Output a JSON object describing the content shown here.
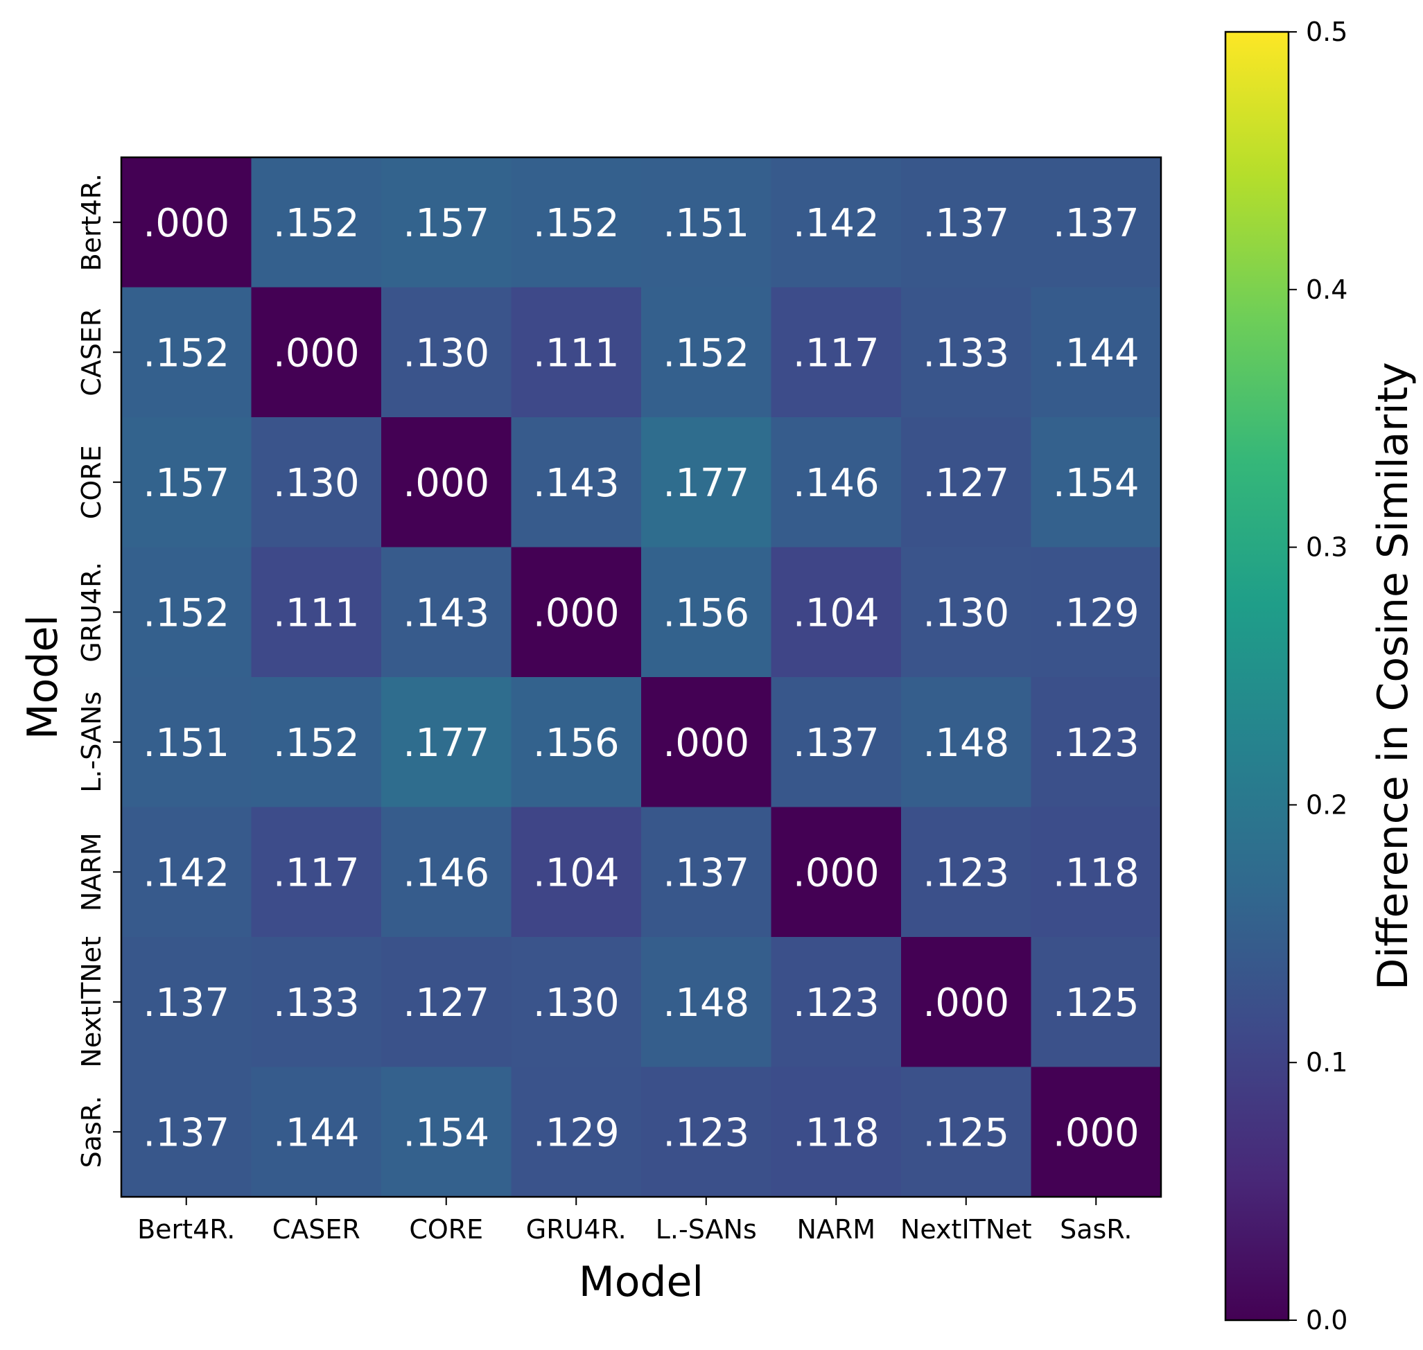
{
  "chart_data": {
    "type": "heatmap",
    "title": "",
    "xlabel": "Model",
    "ylabel": "Model",
    "x_categories": [
      "Bert4R.",
      "CASER",
      "CORE",
      "GRU4R.",
      "L.-SANs",
      "NARM",
      "NextITNet",
      "SasR."
    ],
    "y_categories": [
      "Bert4R.",
      "CASER",
      "CORE",
      "GRU4R.",
      "L.-SANs",
      "NARM",
      "NextITNet",
      "SasR."
    ],
    "values": [
      [
        0.0,
        0.152,
        0.157,
        0.152,
        0.151,
        0.142,
        0.137,
        0.137
      ],
      [
        0.152,
        0.0,
        0.13,
        0.111,
        0.152,
        0.117,
        0.133,
        0.144
      ],
      [
        0.157,
        0.13,
        0.0,
        0.143,
        0.177,
        0.146,
        0.127,
        0.154
      ],
      [
        0.152,
        0.111,
        0.143,
        0.0,
        0.156,
        0.104,
        0.13,
        0.129
      ],
      [
        0.151,
        0.152,
        0.177,
        0.156,
        0.0,
        0.137,
        0.148,
        0.123
      ],
      [
        0.142,
        0.117,
        0.146,
        0.104,
        0.137,
        0.0,
        0.123,
        0.118
      ],
      [
        0.137,
        0.133,
        0.127,
        0.13,
        0.148,
        0.123,
        0.0,
        0.125
      ],
      [
        0.137,
        0.144,
        0.154,
        0.129,
        0.123,
        0.118,
        0.125,
        0.0
      ]
    ],
    "cell_labels": [
      [
        ".000",
        ".152",
        ".157",
        ".152",
        ".151",
        ".142",
        ".137",
        ".137"
      ],
      [
        ".152",
        ".000",
        ".130",
        ".111",
        ".152",
        ".117",
        ".133",
        ".144"
      ],
      [
        ".157",
        ".130",
        ".000",
        ".143",
        ".177",
        ".146",
        ".127",
        ".154"
      ],
      [
        ".152",
        ".111",
        ".143",
        ".000",
        ".156",
        ".104",
        ".130",
        ".129"
      ],
      [
        ".151",
        ".152",
        ".177",
        ".156",
        ".000",
        ".137",
        ".148",
        ".123"
      ],
      [
        ".142",
        ".117",
        ".146",
        ".104",
        ".137",
        ".000",
        ".123",
        ".118"
      ],
      [
        ".137",
        ".133",
        ".127",
        ".130",
        ".148",
        ".123",
        ".000",
        ".125"
      ],
      [
        ".137",
        ".144",
        ".154",
        ".129",
        ".123",
        ".118",
        ".125",
        ".000"
      ]
    ],
    "colorbar": {
      "label": "Difference in Cosine Similarity",
      "range": [
        0.0,
        0.5
      ],
      "ticks": [
        0.0,
        0.1,
        0.2,
        0.3,
        0.4,
        0.5
      ],
      "tick_labels": [
        "0.0",
        "0.1",
        "0.2",
        "0.3",
        "0.4",
        "0.5"
      ],
      "colormap": "viridis",
      "colormap_stops": [
        "#440154",
        "#482878",
        "#3e4989",
        "#31688e",
        "#26828e",
        "#1f9e89",
        "#35b779",
        "#6ece58",
        "#b5de2b",
        "#fde725"
      ]
    },
    "cell_text_color": "#ffffff",
    "grid": false,
    "legend": "colorbar-right"
  }
}
